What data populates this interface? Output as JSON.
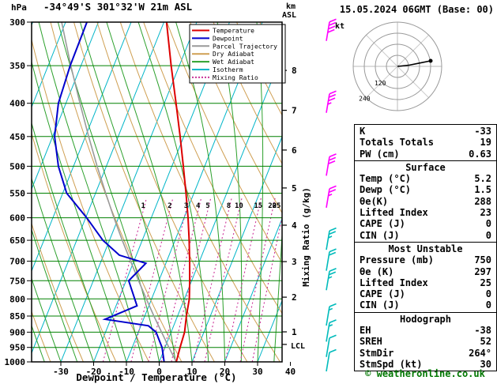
{
  "header": {
    "station_title": "-34°49'S 301°32'W 21m ASL",
    "datetime_title": "15.05.2024 06GMT (Base: 00)",
    "copyright": "© weatheronline.co.uk"
  },
  "axes": {
    "pressure_unit": "hPa",
    "km_unit": "km",
    "asl_label": "ASL",
    "x_label": "Dewpoint / Temperature (°C)",
    "mixing_ratio_label": "Mixing Ratio (g/kg)",
    "lcl_label": "LCL",
    "pressure_ticks": [
      300,
      350,
      400,
      450,
      500,
      550,
      600,
      650,
      700,
      750,
      800,
      850,
      900,
      950,
      1000
    ],
    "temp_ticks": [
      -30,
      -20,
      -10,
      0,
      10,
      20,
      30,
      40
    ]
  },
  "colors": {
    "temperature": "#dd0000",
    "dewpoint": "#0000cc",
    "parcel": "#9a9a9a",
    "dry_adiabat": "#cf9f52",
    "wet_adiabat": "#2ca02c",
    "isotherm": "#00b5c8",
    "mixing_ratio": "#cc3399",
    "isobar": "#008000",
    "barb_upper": "#ff00ff",
    "barb_lower": "#00bbbb",
    "copyright_green": "#007700"
  },
  "legend": [
    {
      "label": "Temperature",
      "color": "#dd0000",
      "style": "solid"
    },
    {
      "label": "Dewpoint",
      "color": "#0000cc",
      "style": "solid"
    },
    {
      "label": "Parcel Trajectory",
      "color": "#9a9a9a",
      "style": "solid"
    },
    {
      "label": "Dry Adiabat",
      "color": "#cf9f52",
      "style": "solid"
    },
    {
      "label": "Wet Adiabat",
      "color": "#2ca02c",
      "style": "solid"
    },
    {
      "label": "Isotherm",
      "color": "#00b5c8",
      "style": "solid"
    },
    {
      "label": "Mixing Ratio",
      "color": "#cc3399",
      "style": "dotted"
    }
  ],
  "hodograph": {
    "unit_label": "kt",
    "direction_labels": [
      "120",
      "240"
    ],
    "rings_kt": [
      10,
      20,
      30,
      40
    ],
    "trace_uv_kt": [
      [
        0,
        0
      ],
      [
        10,
        1
      ],
      [
        20,
        3
      ],
      [
        30,
        5
      ]
    ]
  },
  "table": {
    "sections": [
      {
        "header": null,
        "rows": [
          [
            "K",
            "-33"
          ],
          [
            "Totals Totals",
            "19"
          ],
          [
            "PW (cm)",
            "0.63"
          ]
        ]
      },
      {
        "header": "Surface",
        "rows": [
          [
            "Temp (°C)",
            "5.2"
          ],
          [
            "Dewp (°C)",
            "1.5"
          ],
          [
            "θe(K)",
            "288"
          ],
          [
            "Lifted Index",
            "23"
          ],
          [
            "CAPE (J)",
            "0"
          ],
          [
            "CIN (J)",
            "0"
          ]
        ]
      },
      {
        "header": "Most Unstable",
        "rows": [
          [
            "Pressure (mb)",
            "750"
          ],
          [
            "θe (K)",
            "297"
          ],
          [
            "Lifted Index",
            "25"
          ],
          [
            "CAPE (J)",
            "0"
          ],
          [
            "CIN (J)",
            "0"
          ]
        ]
      },
      {
        "header": "Hodograph",
        "rows": [
          [
            "EH",
            "-38"
          ],
          [
            "SREH",
            "52"
          ],
          [
            "StmDir",
            "264°"
          ],
          [
            "StmSpd (kt)",
            "30"
          ]
        ]
      }
    ]
  },
  "chart_data": {
    "type": "skewt_logp_sounding",
    "pressure_range_hPa": [
      300,
      1000
    ],
    "temp_axis_range_C": [
      -35,
      40
    ],
    "isotherm_step_C": 10,
    "dry_adiabat_step_K": 10,
    "wet_adiabat_step_C": 5,
    "mixing_ratio_lines_g_kg": [
      1,
      2,
      3,
      4,
      5,
      8,
      10,
      15,
      20,
      25
    ],
    "temperature_profile_p_T": [
      [
        1000,
        5.2
      ],
      [
        950,
        4.6
      ],
      [
        900,
        4.1
      ],
      [
        850,
        2.7
      ],
      [
        800,
        1.5
      ],
      [
        750,
        -0.6
      ],
      [
        700,
        -3.0
      ],
      [
        650,
        -5.7
      ],
      [
        600,
        -8.8
      ],
      [
        550,
        -12.4
      ],
      [
        500,
        -16.5
      ],
      [
        450,
        -21.1
      ],
      [
        400,
        -26.4
      ],
      [
        350,
        -32.5
      ],
      [
        300,
        -39.2
      ]
    ],
    "dewpoint_profile_p_T": [
      [
        1000,
        1.5
      ],
      [
        950,
        -0.9
      ],
      [
        900,
        -4.6
      ],
      [
        880,
        -7.7
      ],
      [
        860,
        -21.7
      ],
      [
        820,
        -13.6
      ],
      [
        750,
        -19.2
      ],
      [
        705,
        -16.1
      ],
      [
        685,
        -25.2
      ],
      [
        650,
        -32.0
      ],
      [
        600,
        -39.7
      ],
      [
        550,
        -48.8
      ],
      [
        500,
        -54.6
      ],
      [
        450,
        -59.4
      ],
      [
        400,
        -62.3
      ],
      [
        350,
        -63.3
      ],
      [
        300,
        -63.5
      ]
    ],
    "parcel_profile_p_T": [
      [
        1000,
        5.2
      ],
      [
        950,
        1.2
      ],
      [
        900,
        -2.9
      ],
      [
        850,
        -7.2
      ],
      [
        800,
        -11.6
      ],
      [
        750,
        -16.2
      ],
      [
        700,
        -21.0
      ],
      [
        650,
        -26.1
      ],
      [
        600,
        -31.4
      ],
      [
        550,
        -36.9
      ],
      [
        500,
        -42.8
      ],
      [
        450,
        -49.0
      ],
      [
        400,
        -55.7
      ],
      [
        350,
        -63.1
      ],
      [
        300,
        -71.2
      ]
    ],
    "km_ticks": [
      {
        "km": 1,
        "p": 899
      },
      {
        "km": 2,
        "p": 795
      },
      {
        "km": 3,
        "p": 701
      },
      {
        "km": 4,
        "p": 616
      },
      {
        "km": 5,
        "p": 540
      },
      {
        "km": 6,
        "p": 472
      },
      {
        "km": 7,
        "p": 410
      },
      {
        "km": 8,
        "p": 356
      }
    ],
    "lcl_pressure_hPa": 940,
    "wind_barbs": [
      {
        "pressure_hPa": 310,
        "speed_kt": 40,
        "color": "barb_upper"
      },
      {
        "pressure_hPa": 400,
        "speed_kt": 38,
        "color": "barb_upper"
      },
      {
        "pressure_hPa": 500,
        "speed_kt": 33,
        "color": "barb_upper"
      },
      {
        "pressure_hPa": 560,
        "speed_kt": 28,
        "color": "barb_upper"
      },
      {
        "pressure_hPa": 650,
        "speed_kt": 25,
        "color": "barb_lower"
      },
      {
        "pressure_hPa": 700,
        "speed_kt": 24,
        "color": "barb_lower"
      },
      {
        "pressure_hPa": 750,
        "speed_kt": 25,
        "color": "barb_lower"
      },
      {
        "pressure_hPa": 850,
        "speed_kt": 18,
        "color": "barb_lower"
      },
      {
        "pressure_hPa": 900,
        "speed_kt": 15,
        "color": "barb_lower"
      },
      {
        "pressure_hPa": 950,
        "speed_kt": 12,
        "color": "barb_lower"
      },
      {
        "pressure_hPa": 1000,
        "speed_kt": 10,
        "color": "barb_lower"
      }
    ]
  }
}
